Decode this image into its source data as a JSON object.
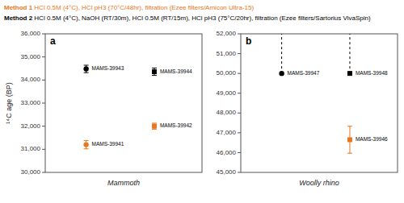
{
  "chart_data": [
    {
      "type": "scatter",
      "title": "a",
      "xlabel": "Mammoth",
      "ylabel": "¹⁴C age (BP)",
      "annotations": [
        {
          "title": "Method 1",
          "text": " HCl 0.5M (4°C), HCl pH3 (70°C/48hr), filtration (Ezee filters/Amicon Ultra-15)",
          "color": "#E87722"
        },
        {
          "title": "Method 2",
          "text": " HCl 0.5M (4°C), NaOH (RT/30m), HCl 0.5M (RT/15m), HCl pH3 (75°C/20hr), filtration (Ezee filters/Sartorius VivaSpin)",
          "color": "#000000"
        }
      ],
      "xlim": [
        0.4,
        2.7
      ],
      "ylim": [
        30000,
        36000
      ],
      "yticks": [
        {
          "value": 30000,
          "label": "30,000"
        },
        {
          "value": 31000,
          "label": "31,000"
        },
        {
          "value": 32000,
          "label": "32,000"
        },
        {
          "value": 33000,
          "label": "33,000"
        },
        {
          "value": 34000,
          "label": "34,000"
        },
        {
          "value": 35000,
          "label": "35,000"
        },
        {
          "value": 36000,
          "label": "36,000"
        }
      ],
      "tick_labels": "y",
      "grid": false,
      "series": [
        {
          "name": "MAMS-39941",
          "color": "#E87722",
          "marker": "circle",
          "x": [
            1.0
          ],
          "values": [
            31200
          ],
          "errors": [
            180
          ]
        },
        {
          "name": "MAMS-39943",
          "color": "#000000",
          "marker": "circle",
          "x": [
            1.0
          ],
          "values": [
            34480
          ],
          "errors": [
            160
          ]
        },
        {
          "name": "MAMS-39942",
          "color": "#E87722",
          "marker": "square",
          "x": [
            2.0
          ],
          "values": [
            32000
          ],
          "errors": [
            130
          ]
        },
        {
          "name": "MAMS-39944",
          "color": "#000000",
          "marker": "square",
          "x": [
            2.0
          ],
          "values": [
            34360
          ],
          "errors": [
            160
          ]
        }
      ]
    },
    {
      "type": "scatter",
      "title": "b",
      "xlabel": "Woolly rhino",
      "xlim": [
        0.4,
        2.7
      ],
      "ylim": [
        45000,
        52000
      ],
      "yticks": [
        {
          "value": 45000,
          "label": "45,000"
        },
        {
          "value": 46000,
          "label": "46,000"
        },
        {
          "value": 47000,
          "label": "47,000"
        },
        {
          "value": 48000,
          "label": "48,000"
        },
        {
          "value": 49000,
          "label": "49,000"
        },
        {
          "value": 50000,
          "label": "50,000"
        },
        {
          "value": 51000,
          "label": "51,000"
        },
        {
          "value": 52000,
          "label": "52,000"
        }
      ],
      "tick_labels": "y",
      "grid": false,
      "series": [
        {
          "name": "MAMS-39947",
          "color": "#000000",
          "marker": "circle",
          "line_style": "dashed",
          "x": [
            1.0
          ],
          "values": [
            50000
          ]
        },
        {
          "name": "MAMS-39948",
          "color": "#000000",
          "marker": "square",
          "line_style": "dashed",
          "x": [
            2.0
          ],
          "values": [
            50000
          ]
        },
        {
          "name": "MAMS-39946",
          "color": "#E87722",
          "marker": "square",
          "x": [
            2.0
          ],
          "values": [
            46650
          ],
          "errors": [
            680
          ]
        }
      ]
    }
  ]
}
